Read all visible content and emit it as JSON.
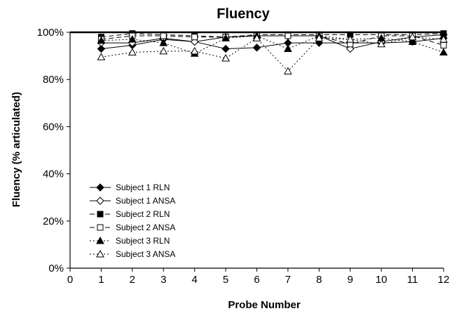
{
  "chart_data": {
    "type": "line",
    "title": "Fluency",
    "xlabel": "Probe Number",
    "ylabel": "Fluency (% articulated)",
    "xlim": [
      0,
      12
    ],
    "ylim": [
      0,
      100
    ],
    "x_ticks": [
      0,
      1,
      2,
      3,
      4,
      5,
      6,
      7,
      8,
      9,
      10,
      11,
      12
    ],
    "y_ticks": [
      0,
      20,
      40,
      60,
      80,
      100
    ],
    "y_tick_labels": [
      "0%",
      "20%",
      "40%",
      "60%",
      "80%",
      "100%"
    ],
    "grid": false,
    "legend_position": "bottom-left",
    "x": [
      1,
      2,
      3,
      4,
      5,
      6,
      7,
      8,
      9,
      10,
      11,
      12
    ],
    "series": [
      {
        "name": "Subject 1 RLN",
        "line": "solid",
        "marker": "diamond-filled",
        "values": [
          93,
          94.5,
          97,
          96,
          93,
          93.5,
          95.5,
          95.5,
          95.5,
          95.5,
          96,
          97.5
        ]
      },
      {
        "name": "Subject 1 ANSA",
        "line": "solid",
        "marker": "diamond-open",
        "values": [
          95.5,
          95.5,
          97.5,
          96,
          98,
          98.5,
          98.5,
          98.5,
          93,
          96,
          98,
          99
        ]
      },
      {
        "name": "Subject 2 RLN",
        "line": "dashed",
        "marker": "square-filled",
        "values": [
          98,
          99.5,
          99,
          98.5,
          98,
          99,
          99,
          99,
          99,
          99,
          99,
          99.5
        ]
      },
      {
        "name": "Subject 2 ANSA",
        "line": "dashed",
        "marker": "square-open",
        "values": [
          97,
          98.5,
          98.5,
          98,
          98,
          98.5,
          98.5,
          98.5,
          95,
          98.5,
          98.5,
          94.5
        ]
      },
      {
        "name": "Subject 3 RLN",
        "line": "dotted",
        "marker": "triangle-filled",
        "values": [
          96.5,
          97,
          95.5,
          91,
          97.5,
          98.5,
          93,
          98.5,
          97,
          97.5,
          96,
          91.5
        ]
      },
      {
        "name": "Subject 3 ANSA",
        "line": "dotted",
        "marker": "triangle-open",
        "values": [
          89.5,
          91.5,
          92,
          92,
          89,
          97.5,
          83.5,
          97.5,
          97,
          95,
          98,
          97
        ]
      }
    ]
  }
}
